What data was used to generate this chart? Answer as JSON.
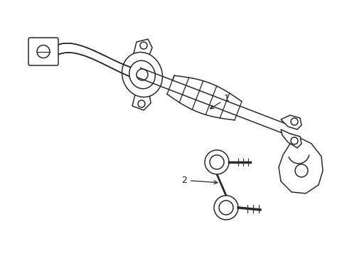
{
  "background_color": "#ffffff",
  "line_color": "#2a2a2a",
  "line_width": 1.1,
  "fig_width": 4.89,
  "fig_height": 3.6,
  "dpi": 100,
  "label_color": "#222222",
  "label_fontsize": 9
}
